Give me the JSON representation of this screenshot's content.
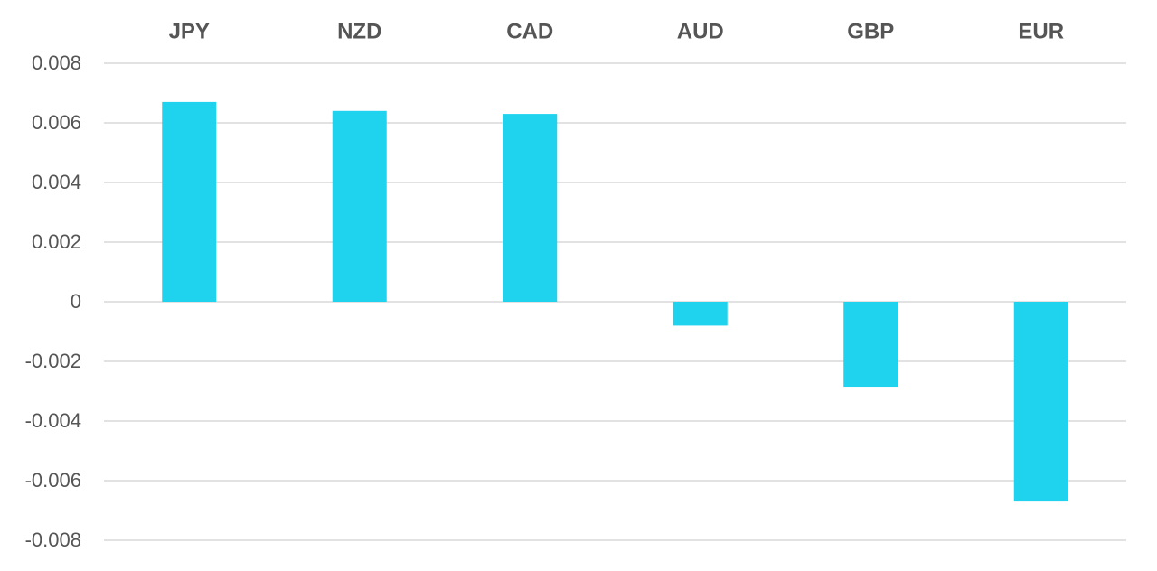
{
  "chart_data": {
    "type": "bar",
    "categories": [
      "JPY",
      "NZD",
      "CAD",
      "AUD",
      "GBP",
      "EUR"
    ],
    "values": [
      0.0067,
      0.0064,
      0.0063,
      -0.0008,
      -0.00285,
      -0.0067
    ],
    "color": "#1fd3ef",
    "ylim": [
      -0.008,
      0.008
    ],
    "yticks": [
      -0.008,
      -0.006,
      -0.004,
      -0.002,
      0,
      0.002,
      0.004,
      0.006,
      0.008
    ],
    "grid": true
  }
}
